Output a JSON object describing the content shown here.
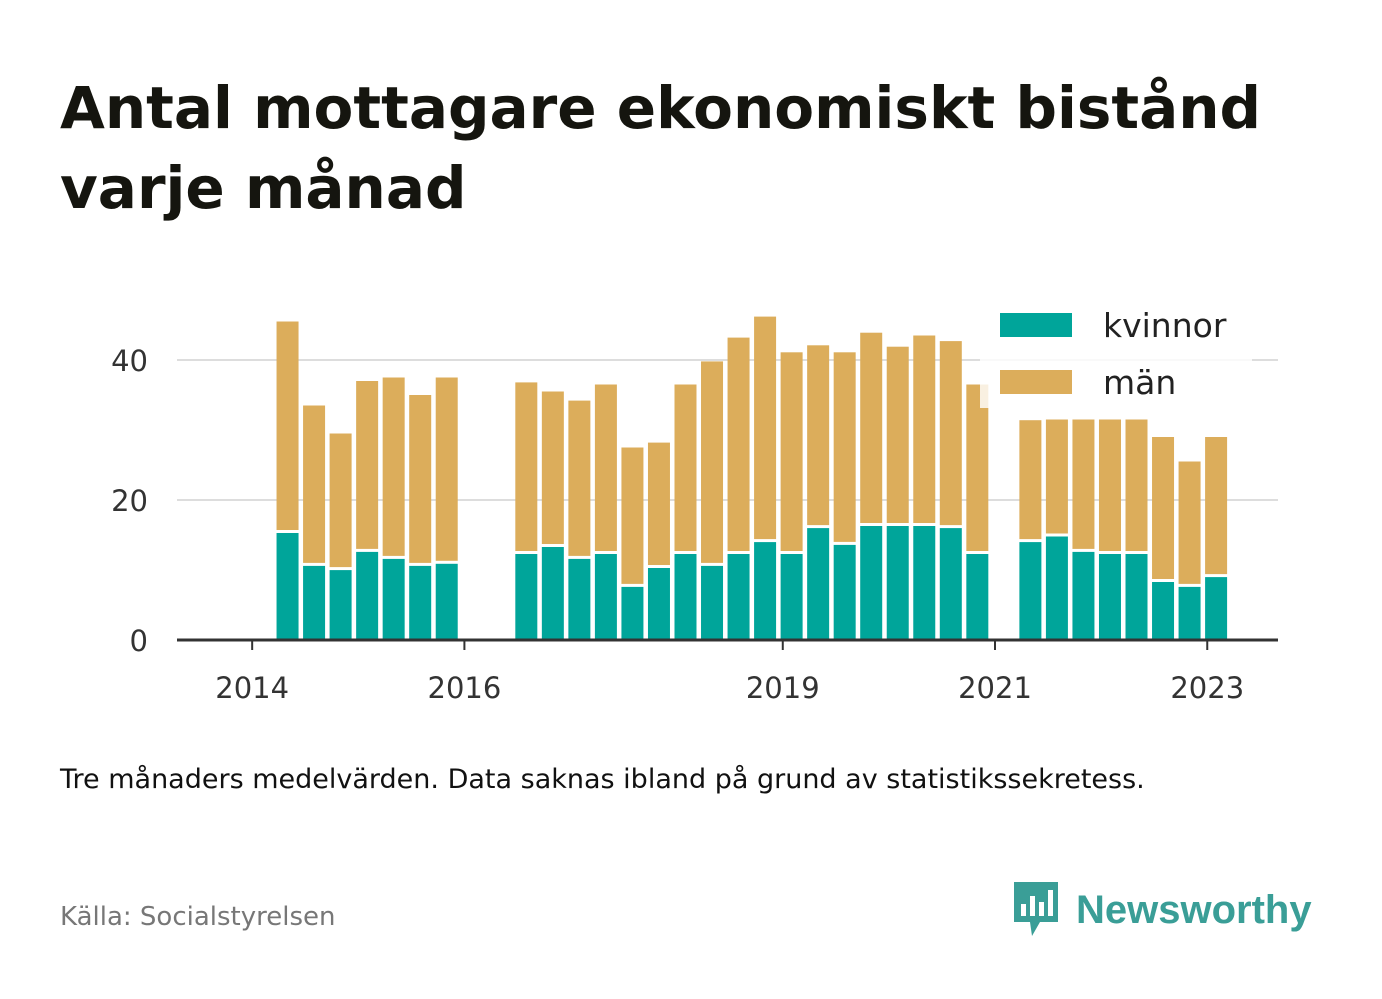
{
  "title": "Antal mottagare ekonomiskt bistånd varje månad",
  "subtitle": "Tre månaders medelvärden. Data saknas ibland på grund av statistikssekretess.",
  "source": "Källa: Socialstyrelsen",
  "brand": {
    "name": "Newsworthy",
    "color": "#3a9e97",
    "icon": "newsworthy-logo-icon"
  },
  "colors": {
    "kvinnor": "#00a59a",
    "man": "#dcad5b",
    "grid": "#dddddd",
    "axis": "#333333"
  },
  "chart_data": {
    "type": "bar",
    "stacked": true,
    "x_ticks": [
      "2014",
      "2016",
      "2019",
      "2021",
      "2023"
    ],
    "y_ticks": [
      "0",
      "20",
      "40"
    ],
    "ylim": [
      0,
      50
    ],
    "legend": {
      "position": "top-right",
      "entries": [
        "kvinnor",
        "män"
      ]
    },
    "grid": true,
    "categories": [
      "2014-05",
      "2014-08",
      "2014-11",
      "2015-02",
      "2015-05",
      "2015-08",
      "2015-11",
      "2016-08",
      "2016-11",
      "2017-02",
      "2017-05",
      "2017-08",
      "2017-11",
      "2018-02",
      "2018-05",
      "2018-08",
      "2018-11",
      "2019-02",
      "2019-05",
      "2019-08",
      "2019-11",
      "2020-02",
      "2020-05",
      "2020-08",
      "2020-11",
      "2021-05",
      "2021-08",
      "2021-11",
      "2022-02",
      "2022-05",
      "2022-08",
      "2022-11",
      "2023-02"
    ],
    "series": [
      {
        "name": "kvinnor",
        "values": [
          15.5,
          10.8,
          10.2,
          12.8,
          11.8,
          10.8,
          11.1,
          12.5,
          13.5,
          11.8,
          12.5,
          7.8,
          10.5,
          12.5,
          10.8,
          12.5,
          14.2,
          12.5,
          16.2,
          13.8,
          16.5,
          16.5,
          16.5,
          16.2,
          12.5,
          14.2,
          15.0,
          12.8,
          12.5,
          12.5,
          8.5,
          7.8,
          9.2
        ]
      },
      {
        "name": "män",
        "values": [
          30.0,
          22.7,
          19.3,
          24.2,
          25.7,
          24.2,
          26.4,
          24.3,
          22.0,
          22.4,
          24.0,
          19.7,
          17.7,
          24.0,
          29.0,
          30.7,
          32.0,
          28.6,
          25.9,
          27.3,
          27.4,
          25.4,
          27.0,
          26.5,
          24.0,
          17.2,
          16.5,
          18.7,
          19.0,
          19.0,
          20.5,
          17.7,
          19.8
        ]
      }
    ]
  }
}
